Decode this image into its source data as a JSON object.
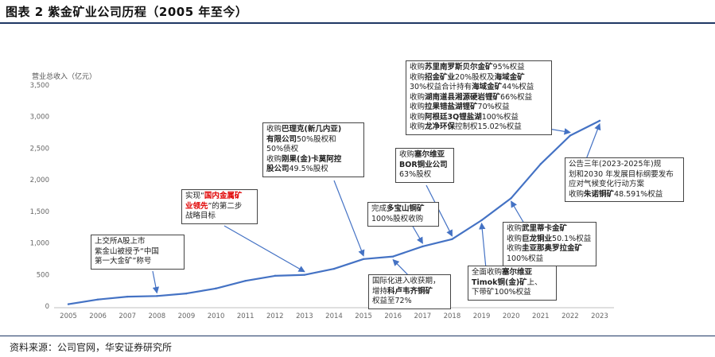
{
  "title": "图表 2  紫金矿业公司历程（2005 年至今）",
  "source": "资料来源：公司官网，华安证券研究所",
  "colors": {
    "line": "#4472c4",
    "accent_red": "#e00000",
    "rule": "#1f3864"
  },
  "chart_data": {
    "type": "line",
    "title": "紫金矿业公司历程（2005 年至今）",
    "ylabel": "营业总收入（亿元）",
    "xlabel": "",
    "ylim": [
      0,
      3500
    ],
    "yticks": [
      "0",
      "500",
      "1,000",
      "1,500",
      "2,000",
      "2,500",
      "3,000",
      "3,500"
    ],
    "ytick_values": [
      0,
      500,
      1000,
      1500,
      2000,
      2500,
      3000,
      3500
    ],
    "categories": [
      "2005",
      "2006",
      "2007",
      "2008",
      "2009",
      "2010",
      "2011",
      "2012",
      "2013",
      "2014",
      "2015",
      "2016",
      "2017",
      "2018",
      "2019",
      "2020",
      "2021",
      "2022",
      "2023"
    ],
    "series": [
      {
        "name": "营业总收入",
        "values": [
          30,
          105,
          150,
          160,
          200,
          280,
          400,
          480,
          495,
          590,
          745,
          785,
          945,
          1060,
          1360,
          1710,
          2250,
          2700,
          2935
        ]
      }
    ],
    "grid": false,
    "annotations": [
      {
        "id": "a2008",
        "lines": [
          [
            {
              "t": "上交所A股上市",
              "s": ""
            }
          ],
          [
            {
              "t": "紫金山被授予“中国",
              "s": ""
            }
          ],
          [
            {
              "t": "第一大金矿”称号",
              "s": ""
            }
          ]
        ],
        "target_category": "2008"
      },
      {
        "id": "a2013",
        "lines": [
          [
            {
              "t": "实现“",
              "s": ""
            },
            {
              "t": "国内金属矿",
              "s": "red"
            }
          ],
          [
            {
              "t": "业领先",
              "s": "red"
            },
            {
              "t": "”的第二步",
              "s": ""
            }
          ],
          [
            {
              "t": "战略目标",
              "s": ""
            }
          ]
        ],
        "target_category": "2013"
      },
      {
        "id": "a2015",
        "lines": [
          [
            {
              "t": "收购",
              "s": ""
            },
            {
              "t": "巴理克(新几内亚)",
              "s": "b"
            }
          ],
          [
            {
              "t": "有限公司",
              "s": "b"
            },
            {
              "t": "50%股权和",
              "s": ""
            }
          ],
          [
            {
              "t": "50%债权",
              "s": ""
            }
          ],
          [
            {
              "t": "收购",
              "s": ""
            },
            {
              "t": "刚果(金)卡莫阿控",
              "s": "b"
            }
          ],
          [
            {
              "t": "股公司",
              "s": "b"
            },
            {
              "t": "49.5%股权",
              "s": ""
            }
          ]
        ],
        "target_category": "2015"
      },
      {
        "id": "a2017",
        "lines": [
          [
            {
              "t": "完成",
              "s": ""
            },
            {
              "t": "多宝山铜矿",
              "s": "b"
            }
          ],
          [
            {
              "t": "100%股权收购",
              "s": ""
            }
          ]
        ],
        "target_category": "2017"
      },
      {
        "id": "a2018",
        "lines": [
          [
            {
              "t": "收购",
              "s": ""
            },
            {
              "t": "塞尔维亚",
              "s": "b"
            }
          ],
          [
            {
              "t": "BOR铜业公司",
              "s": "b"
            }
          ],
          [
            {
              "t": "63%股权",
              "s": ""
            }
          ]
        ],
        "target_category": "2018"
      },
      {
        "id": "a2016",
        "lines": [
          [
            {
              "t": "国际化进入收获期，",
              "s": ""
            }
          ],
          [
            {
              "t": "增持",
              "s": ""
            },
            {
              "t": "科卢韦齐铜矿",
              "s": "b"
            }
          ],
          [
            {
              "t": "权益至72%",
              "s": ""
            }
          ]
        ],
        "target_category": "2016"
      },
      {
        "id": "a2019",
        "lines": [
          [
            {
              "t": "全面收购",
              "s": ""
            },
            {
              "t": "塞尔维亚",
              "s": "b"
            }
          ],
          [
            {
              "t": "Timok铜(金)矿",
              "s": "b"
            },
            {
              "t": "上、",
              "s": ""
            }
          ],
          [
            {
              "t": "下带矿100%权益",
              "s": ""
            }
          ]
        ],
        "target_category": "2019"
      },
      {
        "id": "a2020",
        "lines": [
          [
            {
              "t": "收购",
              "s": ""
            },
            {
              "t": "武里蒂卡金矿",
              "s": "b"
            }
          ],
          [
            {
              "t": "收购",
              "s": ""
            },
            {
              "t": "巨龙铜业",
              "s": "b"
            },
            {
              "t": "50.1%权益",
              "s": ""
            }
          ],
          [
            {
              "t": "收购",
              "s": ""
            },
            {
              "t": "圭亚那奥罗拉金矿",
              "s": "b"
            }
          ],
          [
            {
              "t": "100%权益",
              "s": ""
            }
          ]
        ],
        "target_category": "2020"
      },
      {
        "id": "a2022",
        "lines": [
          [
            {
              "t": "收购",
              "s": ""
            },
            {
              "t": "苏里南罗斯贝尔金矿",
              "s": "b"
            },
            {
              "t": "95%权益",
              "s": ""
            }
          ],
          [
            {
              "t": "收购",
              "s": ""
            },
            {
              "t": "招金矿业",
              "s": "b"
            },
            {
              "t": "20%股权及",
              "s": ""
            },
            {
              "t": "海域金矿",
              "s": "b"
            }
          ],
          [
            {
              "t": "30%权益合计持有",
              "s": ""
            },
            {
              "t": "海域金矿",
              "s": "b"
            },
            {
              "t": "44%权益",
              "s": ""
            }
          ],
          [
            {
              "t": "收购",
              "s": ""
            },
            {
              "t": "湖南道县湘源硬岩锂矿",
              "s": "b"
            },
            {
              "t": "66%权益",
              "s": ""
            }
          ],
          [
            {
              "t": "收购",
              "s": ""
            },
            {
              "t": "拉果错盐湖锂矿",
              "s": "b"
            },
            {
              "t": "70%权益",
              "s": ""
            }
          ],
          [
            {
              "t": "收购",
              "s": ""
            },
            {
              "t": "阿根廷3Q锂盐湖",
              "s": "b"
            },
            {
              "t": "100%权益",
              "s": ""
            }
          ],
          [
            {
              "t": "收购",
              "s": ""
            },
            {
              "t": "龙净环保",
              "s": "b"
            },
            {
              "t": "控制权15.02%权益",
              "s": ""
            }
          ]
        ],
        "target_category": "2022"
      },
      {
        "id": "a2023",
        "lines": [
          [
            {
              "t": "公告三年(2023-2025年)规",
              "s": ""
            }
          ],
          [
            {
              "t": "划和2030 年发展目标纲要发布",
              "s": ""
            }
          ],
          [
            {
              "t": "应对气候变化行动方案",
              "s": ""
            }
          ],
          [
            {
              "t": "收购",
              "s": ""
            },
            {
              "t": "朱诺铜矿",
              "s": "b"
            },
            {
              "t": "48.591%权益",
              "s": ""
            }
          ]
        ],
        "target_category": "2023"
      }
    ]
  }
}
